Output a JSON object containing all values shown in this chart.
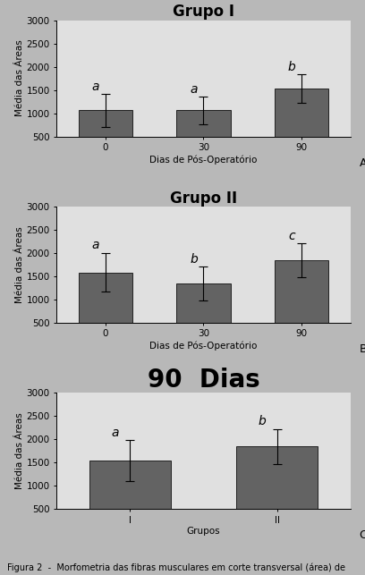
{
  "chart_A": {
    "title": "Grupo I",
    "categories": [
      "0",
      "30",
      "90"
    ],
    "values": [
      1060,
      1060,
      1530
    ],
    "errors": [
      350,
      300,
      300
    ],
    "letters": [
      "a",
      "a",
      "b"
    ],
    "xlabel": "Dias de Pós-Operatório",
    "ylabel": "Média das Áreas",
    "ylim": [
      500,
      3000
    ],
    "yticks": [
      500,
      1000,
      1500,
      2000,
      2500,
      3000
    ],
    "label": "A"
  },
  "chart_B": {
    "title": "Grupo II",
    "categories": [
      "0",
      "30",
      "90"
    ],
    "values": [
      1580,
      1340,
      1840
    ],
    "errors": [
      420,
      360,
      370
    ],
    "letters": [
      "a",
      "b",
      "c"
    ],
    "xlabel": "Dias de Pós-Operatório",
    "ylabel": "Média das Áreas",
    "ylim": [
      500,
      3000
    ],
    "yticks": [
      500,
      1000,
      1500,
      2000,
      2500,
      3000
    ],
    "label": "B"
  },
  "chart_C": {
    "title": "90  Dias",
    "categories": [
      "I",
      "II"
    ],
    "values": [
      1540,
      1840
    ],
    "errors": [
      440,
      380
    ],
    "letters": [
      "a",
      "b"
    ],
    "xlabel": "Grupos",
    "ylabel": "Média das Áreas",
    "ylim": [
      500,
      3000
    ],
    "yticks": [
      500,
      1000,
      1500,
      2000,
      2500,
      3000
    ],
    "label": "C"
  },
  "bar_color": "#636363",
  "bar_edgecolor": "#222222",
  "bar_width": 0.55,
  "plot_bg_color": "#e0e0e0",
  "figure_color": "#b8b8b8",
  "title_fontsize": 12,
  "label_fontsize": 7.5,
  "tick_fontsize": 7.5,
  "letter_fontsize": 10,
  "panel_label_fontsize": 9,
  "caption_fontsize": 7,
  "title_C_fontsize": 20
}
